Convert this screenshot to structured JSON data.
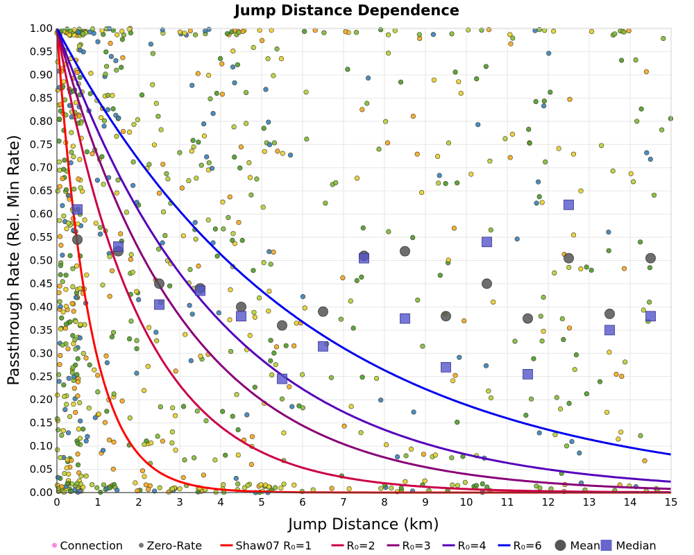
{
  "chart_data": {
    "type": "scatter",
    "title": "Jump Distance Dependence",
    "xlabel": "Jump Distance (km)",
    "ylabel": "Passthrough Rate (Rel. Min Rate)",
    "xlim": [
      0,
      15
    ],
    "ylim": [
      0,
      1
    ],
    "xticks": [
      "0",
      "1",
      "2",
      "3",
      "4",
      "5",
      "6",
      "7",
      "8",
      "9",
      "10",
      "11",
      "12",
      "13",
      "14",
      "15"
    ],
    "yticks": [
      "0.00",
      "0.05",
      "0.10",
      "0.15",
      "0.20",
      "0.25",
      "0.30",
      "0.35",
      "0.40",
      "0.45",
      "0.50",
      "0.55",
      "0.60",
      "0.65",
      "0.70",
      "0.75",
      "0.80",
      "0.85",
      "0.90",
      "0.95",
      "1.00"
    ],
    "grid": true,
    "legend_position": "bottom",
    "legend": [
      {
        "label": "Connection",
        "kind": "dot",
        "color": "#ff88e0"
      },
      {
        "label": "Zero-Rate",
        "kind": "dot",
        "color": "#777777"
      },
      {
        "label": "Shaw07 R₀=1",
        "kind": "line",
        "color": "#ff0000"
      },
      {
        "label": "R₀=2",
        "kind": "line",
        "color": "#cc0044"
      },
      {
        "label": "R₀=3",
        "kind": "line",
        "color": "#880077"
      },
      {
        "label": "R₀=4",
        "kind": "line",
        "color": "#5500bb"
      },
      {
        "label": "R₀=6",
        "kind": "line",
        "color": "#0000ee"
      },
      {
        "label": "Mean",
        "kind": "circle",
        "color": "#555555"
      },
      {
        "label": "Median",
        "kind": "square",
        "color": "#6666cc"
      }
    ],
    "curves": [
      {
        "name": "Shaw07 R₀=1",
        "color": "#ff0000",
        "decay_km": 0.8
      },
      {
        "name": "R₀=2",
        "color": "#cc0044",
        "decay_km": 2.05
      },
      {
        "name": "R₀=3",
        "color": "#880077",
        "decay_km": 3.1
      },
      {
        "name": "R₀=4",
        "color": "#5500bb",
        "decay_km": 4.0
      },
      {
        "name": "R₀=6",
        "color": "#0000ee",
        "decay_km": 6.0
      }
    ],
    "mean": {
      "x": [
        0.5,
        1.5,
        2.5,
        3.5,
        4.5,
        5.5,
        6.5,
        7.5,
        8.5,
        9.5,
        10.5,
        11.5,
        12.5,
        13.5,
        14.5
      ],
      "y": [
        0.545,
        0.52,
        0.45,
        0.44,
        0.4,
        0.36,
        0.39,
        0.51,
        0.52,
        0.38,
        0.45,
        0.375,
        0.505,
        0.385,
        0.505
      ]
    },
    "median": {
      "x": [
        0.5,
        1.5,
        2.5,
        3.5,
        4.5,
        5.5,
        6.5,
        7.5,
        8.5,
        9.5,
        10.5,
        11.5,
        12.5,
        13.5,
        14.5
      ],
      "y": [
        0.61,
        0.53,
        0.405,
        0.435,
        0.38,
        0.245,
        0.315,
        0.505,
        0.375,
        0.27,
        0.54,
        0.255,
        0.62,
        0.35,
        0.38
      ]
    },
    "connection_points": {
      "description": "Dense scatter of individual connections colored from green (low) to orange (high).",
      "palette": [
        "#4e9a2e",
        "#7fb93b",
        "#b7cf3a",
        "#e8cf2e",
        "#f4a623",
        "#3a7fbf"
      ],
      "count": 900
    }
  }
}
